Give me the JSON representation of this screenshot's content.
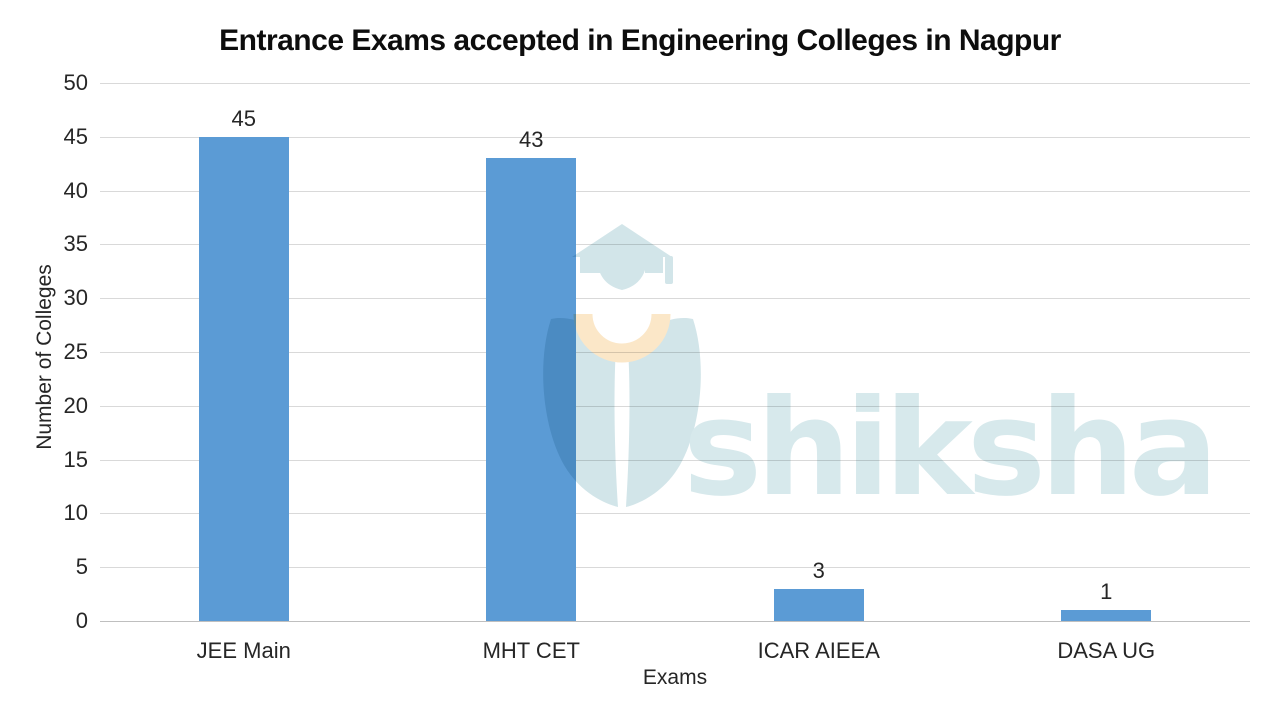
{
  "chart_data": {
    "type": "bar",
    "title": "Entrance Exams accepted in Engineering Colleges in Nagpur",
    "categories": [
      "JEE Main",
      "MHT CET",
      "ICAR AIEEA",
      "DASA UG"
    ],
    "values": [
      45,
      43,
      3,
      1
    ],
    "xlabel": "Exams",
    "ylabel": "Number of Colleges",
    "ylim": [
      0,
      50
    ],
    "yticks": [
      0,
      5,
      10,
      15,
      20,
      25,
      30,
      35,
      40,
      45,
      50
    ],
    "grid": true,
    "legend": false,
    "bar_color": "#5B9BD5"
  },
  "watermark": {
    "brand": "shiksha",
    "logo_icon": "graduation-cap-pen-nib",
    "icon_color": "#D2E5E9",
    "text_color": "#D7E9EC",
    "accent_color": "#FBE7C8"
  },
  "styles": {
    "background": "#FFFFFF",
    "gridline_color": "#D9D9D9",
    "axis_line_color": "#BFBFBF",
    "text_color": "#262626",
    "title_color": "#0D0D0D"
  }
}
